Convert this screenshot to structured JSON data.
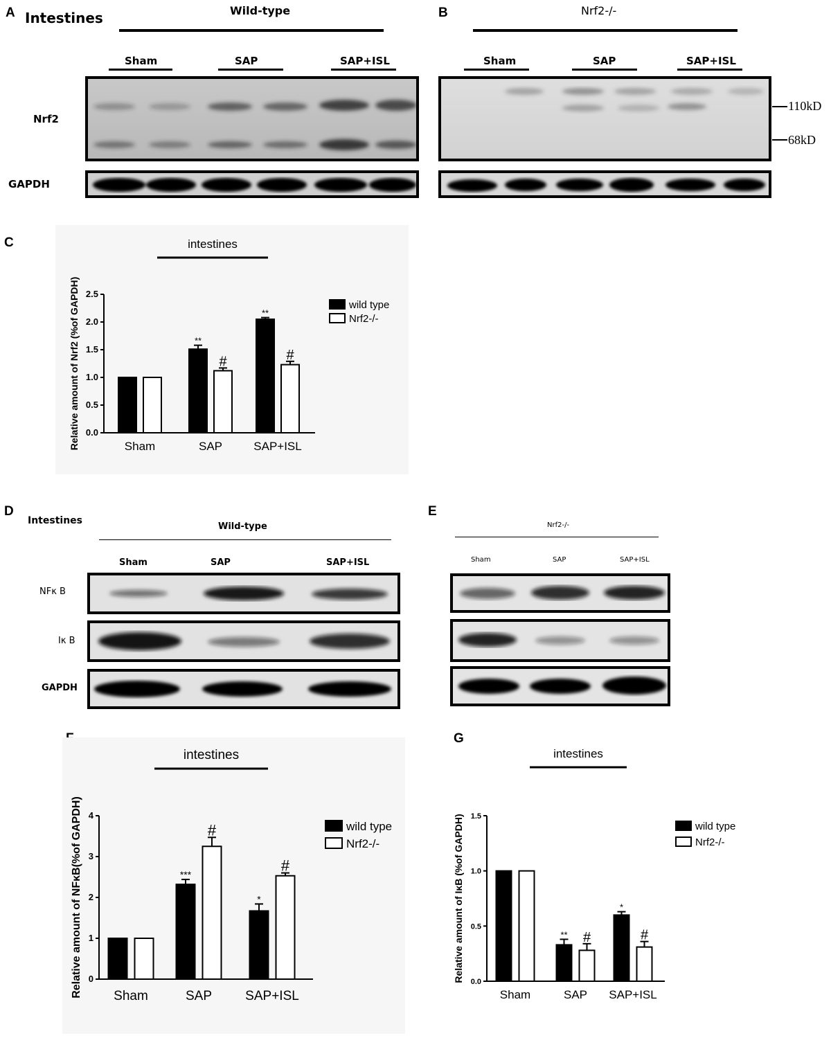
{
  "panels": {
    "A": "A",
    "B": "B",
    "C": "C",
    "D": "D",
    "E": "E",
    "F": "F",
    "G": "G"
  },
  "blot_A": {
    "tissue": "Intestines",
    "genotype": "Wild-type",
    "groups": [
      "Sham",
      "SAP",
      "SAP+ISL"
    ],
    "rows": [
      "Nrf2",
      "GAPDH"
    ]
  },
  "blot_B": {
    "genotype": "Nrf2-/-",
    "groups": [
      "Sham",
      "SAP",
      "SAP+ISL"
    ],
    "markers": [
      "110kD",
      "68kD"
    ]
  },
  "blot_D": {
    "tissue": "Intestines",
    "genotype": "Wild-type",
    "groups": [
      "Sham",
      "SAP",
      "SAP+ISL"
    ],
    "rows": [
      "NFκ B",
      "Iκ B",
      "GAPDH"
    ]
  },
  "blot_E": {
    "genotype": "Nrf2-/-",
    "groups": [
      "Sham",
      "SAP",
      "SAP+ISL"
    ]
  },
  "chart_data": [
    {
      "panel": "C",
      "type": "bar",
      "title": "intestines",
      "ylabel": "Relative amount of Nrf2 (%of GAPDH)",
      "categories": [
        "Sham",
        "SAP",
        "SAP+ISL"
      ],
      "ylim": [
        0,
        2.5
      ],
      "yticks": [
        "0.0",
        "0.5",
        "1.0",
        "1.5",
        "2.0",
        "2.5"
      ],
      "series": [
        {
          "name": "wild type",
          "color": "#000000",
          "values": [
            1.0,
            1.51,
            2.05
          ],
          "errors": [
            0,
            0.07,
            0.03
          ],
          "marks": [
            "",
            "**",
            "**"
          ]
        },
        {
          "name": "Nrf2-/-",
          "color": "#ffffff",
          "values": [
            1.0,
            1.12,
            1.23
          ],
          "errors": [
            0,
            0.05,
            0.06
          ],
          "marks": [
            "",
            "#",
            "#"
          ]
        }
      ],
      "legend": "right"
    },
    {
      "panel": "F",
      "type": "bar",
      "title": "intestines",
      "ylabel": "Relative amount of NFκB(%of GAPDH)",
      "categories": [
        "Sham",
        "SAP",
        "SAP+ISL"
      ],
      "ylim": [
        0,
        4
      ],
      "yticks": [
        "0",
        "1",
        "2",
        "3",
        "4"
      ],
      "series": [
        {
          "name": "wild type",
          "color": "#000000",
          "values": [
            1.0,
            2.32,
            1.67
          ],
          "errors": [
            0,
            0.12,
            0.17
          ],
          "marks": [
            "",
            "***",
            "*"
          ]
        },
        {
          "name": "Nrf2-/-",
          "color": "#ffffff",
          "values": [
            1.0,
            3.25,
            2.53
          ],
          "errors": [
            0,
            0.22,
            0.07
          ],
          "marks": [
            "",
            "#",
            "#"
          ]
        }
      ],
      "legend": "right"
    },
    {
      "panel": "G",
      "type": "bar",
      "title": "intestines",
      "ylabel": "Relative amount of IκB (%of GAPDH)",
      "categories": [
        "Sham",
        "SAP",
        "SAP+ISL"
      ],
      "ylim": [
        0,
        1.5
      ],
      "yticks": [
        "0.0",
        "0.5",
        "1.0",
        "1.5"
      ],
      "series": [
        {
          "name": "wild type",
          "color": "#000000",
          "values": [
            1.0,
            0.33,
            0.6
          ],
          "errors": [
            0,
            0.05,
            0.03
          ],
          "marks": [
            "",
            "**",
            "*"
          ]
        },
        {
          "name": "Nrf2-/-",
          "color": "#ffffff",
          "values": [
            1.0,
            0.28,
            0.31
          ],
          "errors": [
            0,
            0.06,
            0.05
          ],
          "marks": [
            "",
            "#",
            "#"
          ]
        }
      ],
      "legend": "right"
    }
  ]
}
